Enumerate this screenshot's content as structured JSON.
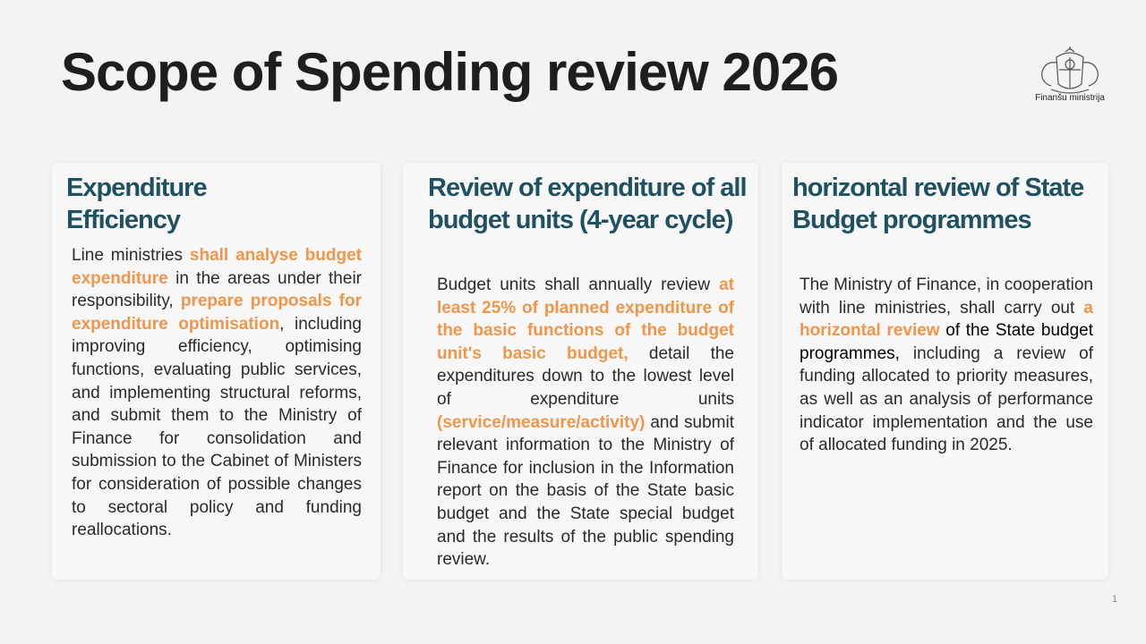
{
  "header": {
    "title": "Scope of Spending review 2026",
    "logo_caption": "Finanšu ministrija"
  },
  "cards": [
    {
      "heading": "Expenditure\nEfficiency",
      "body": [
        {
          "text": "Line ministries ",
          "color": "#2a2a2a"
        },
        {
          "text": "shall analyse budget expenditure",
          "color": "#f0954a"
        },
        {
          "text": " in the areas under their responsibility, ",
          "color": "#2a2a2a"
        },
        {
          "text": "prepare proposals for expenditure optimisation",
          "color": "#f0954a"
        },
        {
          "text": ", including improving efficiency, optimising functions, evaluating public services, and implementing structural reforms, and submit them to the Ministry of Finance for consolidation and submission to the Cabinet of Ministers for consideration of possible changes to sectoral policy and funding reallocations.",
          "color": "#2a2a2a"
        }
      ]
    },
    {
      "heading": "Review of expenditure of all budget units (4-year cycle)",
      "body": [
        {
          "text": "Budget units shall annually review ",
          "color": "#2a2a2a"
        },
        {
          "text": "at least 25% of planned expenditure of the basic functions of the budget unit's basic budget,",
          "color": "#f0954a"
        },
        {
          "text": " detail the expenditures down to the lowest level of expenditure units ",
          "color": "#2a2a2a"
        },
        {
          "text": "(service/measure/activity)",
          "color": "#f0954a"
        },
        {
          "text": " and submit relevant information to the Ministry of Finance for inclusion in the Information report on the basis of the State basic budget and the State special budget and the results of the public spending review.",
          "color": "#2a2a2a"
        }
      ]
    },
    {
      "heading": "horizontal review of State Budget programmes",
      "body": [
        {
          "text": "The Ministry of Finance, in cooperation with line ministries, shall carry out ",
          "color": "#2a2a2a"
        },
        {
          "text": "a horizontal review",
          "color": "#f0954a"
        },
        {
          "text": " of the State budget programmes,",
          "color": "#000000"
        },
        {
          "text": " including a review of funding allocated to priority measures, as well as an analysis of performance indicator implementation and the use of allocated funding in 2025.",
          "color": "#2a2a2a"
        }
      ]
    }
  ],
  "footer": {
    "page_number": "1"
  }
}
